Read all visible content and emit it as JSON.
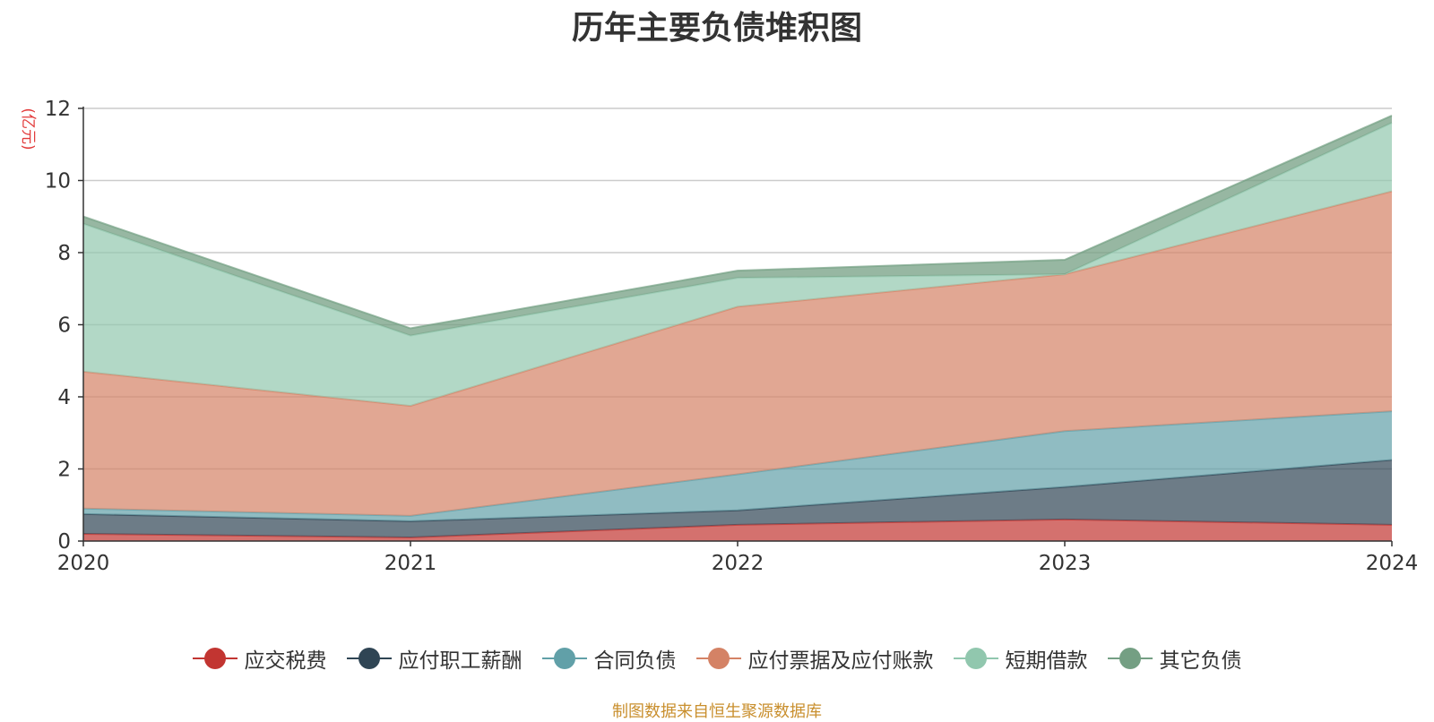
{
  "chart_data": {
    "type": "area",
    "stacked": true,
    "title": "历年主要负债堆积图",
    "ylabel": "(亿元)",
    "xlabel": "",
    "categories": [
      "2020",
      "2021",
      "2022",
      "2023",
      "2024"
    ],
    "ylim": [
      0,
      12
    ],
    "yticks": [
      0,
      2,
      4,
      6,
      8,
      10,
      12
    ],
    "grid": true,
    "legend_position": "bottom",
    "series": [
      {
        "name": "应交税费",
        "color": "#c23531",
        "values": [
          0.2,
          0.1,
          0.45,
          0.6,
          0.45
        ]
      },
      {
        "name": "应付职工薪酬",
        "color": "#2f4554",
        "values": [
          0.55,
          0.45,
          0.4,
          0.9,
          1.8
        ]
      },
      {
        "name": "合同负债",
        "color": "#61a0a8",
        "values": [
          0.15,
          0.15,
          1.0,
          1.55,
          1.35
        ]
      },
      {
        "name": "应付票据及应付账款",
        "color": "#d48265",
        "values": [
          3.8,
          3.05,
          4.65,
          4.35,
          6.1
        ]
      },
      {
        "name": "短期借款",
        "color": "#91c7ae",
        "values": [
          4.1,
          1.95,
          0.8,
          0.0,
          1.9
        ]
      },
      {
        "name": "其它负债",
        "color": "#749f83",
        "values": [
          0.2,
          0.2,
          0.2,
          0.4,
          0.2
        ]
      }
    ]
  },
  "footer": {
    "source": "制图数据来自恒生聚源数据库"
  }
}
